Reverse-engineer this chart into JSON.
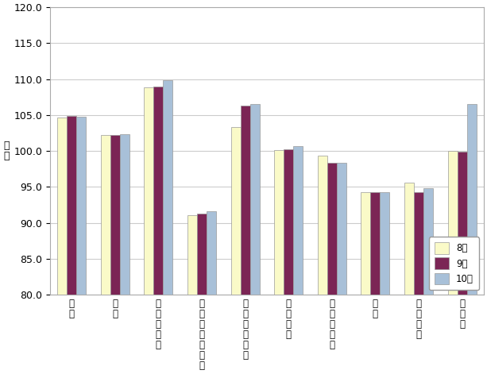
{
  "categories": [
    "食料",
    "住居",
    "光熱・水道",
    "家具・家事用品",
    "被服及び履物",
    "保健医療",
    "交通・通信",
    "教育",
    "教養娯楽",
    "諸雑費"
  ],
  "aug": [
    104.7,
    102.2,
    108.9,
    91.0,
    103.3,
    100.1,
    99.3,
    94.3,
    95.6,
    100.0
  ],
  "sep": [
    104.9,
    102.2,
    109.0,
    91.3,
    106.3,
    100.2,
    98.4,
    94.3,
    94.3,
    99.9
  ],
  "oct": [
    104.8,
    102.3,
    109.8,
    91.6,
    106.5,
    100.7,
    98.3,
    94.3,
    94.8,
    106.5
  ],
  "aug_color": "#FAFAC8",
  "sep_color": "#7B2555",
  "oct_color": "#A8C0D8",
  "ylabel": "指数",
  "ylim_min": 80.0,
  "ylim_max": 120.0,
  "ytick_step": 5.0,
  "legend_labels": [
    "8月",
    "9月",
    "10月"
  ],
  "bar_width": 0.22,
  "bar_edge_color": "#999999",
  "background_color": "#ffffff",
  "grid_color": "#cccccc"
}
